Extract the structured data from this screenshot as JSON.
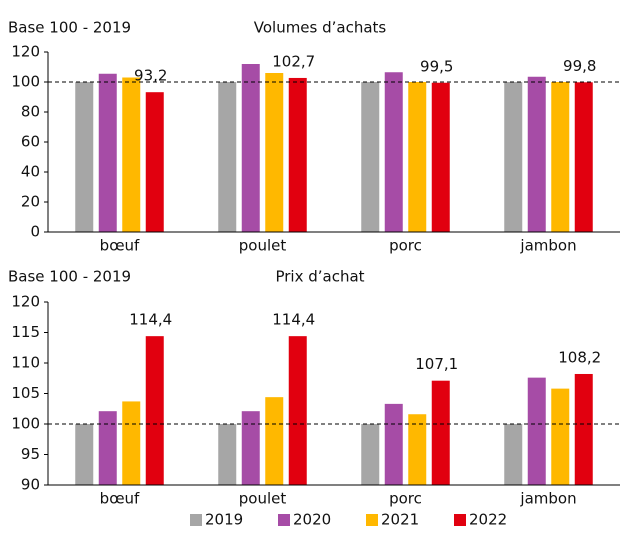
{
  "chart_data": [
    {
      "type": "bar",
      "title": "Volumes d’achats",
      "ylabel": "Base 100 - 2019",
      "categories": [
        "bœuf",
        "poulet",
        "porc",
        "jambon"
      ],
      "series": [
        {
          "name": "2019",
          "color": "#a6a6a6",
          "values": [
            100,
            100,
            100,
            100
          ]
        },
        {
          "name": "2020",
          "color": "#a64ca6",
          "values": [
            105.5,
            112,
            106.5,
            103.5
          ]
        },
        {
          "name": "2021",
          "color": "#ffb800",
          "values": [
            103,
            106,
            100,
            100
          ]
        },
        {
          "name": "2022",
          "color": "#e1000f",
          "values": [
            93.2,
            102.7,
            99.5,
            99.8
          ],
          "value_labels": [
            "93,2",
            "102,7",
            "99,5",
            "99,8"
          ]
        }
      ],
      "ylim": [
        0,
        120
      ],
      "yticks": [
        0,
        20,
        40,
        60,
        80,
        100,
        120
      ],
      "reference_line": 100
    },
    {
      "type": "bar",
      "title": "Prix d’achat",
      "ylabel": "Base 100 - 2019",
      "categories": [
        "bœuf",
        "poulet",
        "porc",
        "jambon"
      ],
      "series": [
        {
          "name": "2019",
          "color": "#a6a6a6",
          "values": [
            100,
            100,
            100,
            100
          ]
        },
        {
          "name": "2020",
          "color": "#a64ca6",
          "values": [
            102.1,
            102.1,
            103.3,
            107.6
          ]
        },
        {
          "name": "2021",
          "color": "#ffb800",
          "values": [
            103.7,
            104.4,
            101.6,
            105.8
          ]
        },
        {
          "name": "2022",
          "color": "#e1000f",
          "values": [
            114.4,
            114.4,
            107.1,
            108.2
          ],
          "value_labels": [
            "114,4",
            "114,4",
            "107,1",
            "108,2"
          ]
        }
      ],
      "ylim": [
        90,
        120
      ],
      "yticks": [
        90,
        95,
        100,
        105,
        110,
        115,
        120
      ],
      "reference_line": 100,
      "legend": "bottom"
    }
  ]
}
